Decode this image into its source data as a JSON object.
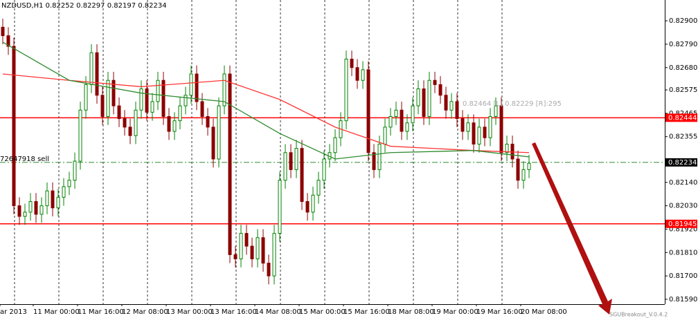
{
  "chart_data": {
    "type": "candlestick",
    "title": "NZDUSD,H1  0.82252 0.82297 0.82197 0.82234",
    "order_label": "72647918 sell",
    "box_label": "0.82464 [L] 0.82229 [R]:295",
    "watermark": "SGUBreakout_V.0.4.2",
    "up_color": "#008000",
    "down_color": "#8b0000",
    "open": [
      0.8287,
      0.8283,
      0.8278,
      0.8203,
      0.8198,
      0.82,
      0.8205,
      0.8199,
      0.8203,
      0.821,
      0.8202,
      0.8207,
      0.8212,
      0.8215,
      0.8224,
      0.8248,
      0.826,
      0.8275,
      0.8255,
      0.8245,
      0.8262,
      0.825,
      0.8244,
      0.824,
      0.8236,
      0.8248,
      0.8258,
      0.8247,
      0.8252,
      0.8262,
      0.8245,
      0.8238,
      0.8243,
      0.825,
      0.8255,
      0.8265,
      0.8252,
      0.8245,
      0.824,
      0.8225,
      0.825,
      0.8265,
      0.818,
      0.8178,
      0.819,
      0.8184,
      0.8178,
      0.8188,
      0.8176,
      0.817,
      0.819,
      0.8215,
      0.8228,
      0.822,
      0.823,
      0.8205,
      0.82,
      0.8208,
      0.8215,
      0.8225,
      0.8228,
      0.8235,
      0.8243,
      0.8272,
      0.8268,
      0.8262,
      0.8267,
      0.8228,
      0.822,
      0.8232,
      0.824,
      0.8245,
      0.8248,
      0.8238,
      0.8242,
      0.825,
      0.8258,
      0.8245,
      0.8262,
      0.826,
      0.8255,
      0.8248,
      0.8252,
      0.8244,
      0.8238,
      0.8242,
      0.8232,
      0.824,
      0.8235,
      0.8245,
      0.825,
      0.8228,
      0.8232,
      0.8225,
      0.8215,
      0.822
    ],
    "high": [
      0.8291,
      0.8287,
      0.8282,
      0.8207,
      0.8204,
      0.8209,
      0.8209,
      0.8207,
      0.8214,
      0.8214,
      0.8211,
      0.8216,
      0.8219,
      0.8228,
      0.8252,
      0.8264,
      0.8279,
      0.8279,
      0.8259,
      0.8266,
      0.8266,
      0.8254,
      0.8248,
      0.8244,
      0.8252,
      0.8262,
      0.8262,
      0.8256,
      0.8266,
      0.8266,
      0.8249,
      0.8247,
      0.8254,
      0.8259,
      0.8269,
      0.8269,
      0.8256,
      0.8249,
      0.8244,
      0.8254,
      0.8269,
      0.8269,
      0.8184,
      0.8194,
      0.8194,
      0.8188,
      0.8192,
      0.8192,
      0.818,
      0.8194,
      0.8219,
      0.8232,
      0.8232,
      0.8234,
      0.8234,
      0.8209,
      0.8212,
      0.8219,
      0.8229,
      0.8232,
      0.8239,
      0.8247,
      0.8276,
      0.8276,
      0.8272,
      0.8271,
      0.8271,
      0.8232,
      0.8236,
      0.8244,
      0.8249,
      0.8252,
      0.8252,
      0.8246,
      0.8254,
      0.8262,
      0.8262,
      0.8266,
      0.8266,
      0.8264,
      0.8259,
      0.8256,
      0.8256,
      0.8248,
      0.8246,
      0.8246,
      0.8244,
      0.8244,
      0.8249,
      0.8254,
      0.8254,
      0.8236,
      0.8236,
      0.8229,
      0.8224,
      0.8227
    ],
    "low": [
      0.8279,
      0.8274,
      0.8199,
      0.8194,
      0.8194,
      0.8196,
      0.8195,
      0.8195,
      0.8199,
      0.8198,
      0.8198,
      0.8203,
      0.8208,
      0.8211,
      0.822,
      0.8244,
      0.8256,
      0.8251,
      0.8241,
      0.8241,
      0.8246,
      0.824,
      0.8236,
      0.8232,
      0.8232,
      0.8244,
      0.8243,
      0.8243,
      0.8248,
      0.8241,
      0.8234,
      0.8234,
      0.8239,
      0.8246,
      0.8251,
      0.8248,
      0.8241,
      0.8236,
      0.8221,
      0.8221,
      0.8246,
      0.8176,
      0.8174,
      0.8174,
      0.818,
      0.8174,
      0.8174,
      0.8172,
      0.8166,
      0.8166,
      0.8186,
      0.8211,
      0.8216,
      0.8216,
      0.8201,
      0.8196,
      0.8196,
      0.8204,
      0.8211,
      0.8221,
      0.8224,
      0.8231,
      0.8239,
      0.8264,
      0.8258,
      0.8258,
      0.8224,
      0.8216,
      0.8216,
      0.8228,
      0.8236,
      0.8241,
      0.8234,
      0.8234,
      0.8238,
      0.8246,
      0.8241,
      0.8241,
      0.8256,
      0.8251,
      0.8244,
      0.8244,
      0.824,
      0.8234,
      0.8234,
      0.8228,
      0.8228,
      0.8231,
      0.8231,
      0.8241,
      0.8224,
      0.8224,
      0.8221,
      0.8211,
      0.8211,
      0.8216
    ],
    "close": [
      0.8283,
      0.8278,
      0.8203,
      0.8198,
      0.82,
      0.8205,
      0.8199,
      0.8203,
      0.821,
      0.8202,
      0.8207,
      0.8212,
      0.8215,
      0.8224,
      0.8248,
      0.826,
      0.8275,
      0.8255,
      0.8245,
      0.8262,
      0.825,
      0.8244,
      0.824,
      0.8236,
      0.8248,
      0.8258,
      0.8247,
      0.8252,
      0.8262,
      0.8245,
      0.8238,
      0.8243,
      0.825,
      0.8255,
      0.8265,
      0.8252,
      0.8245,
      0.824,
      0.8225,
      0.825,
      0.8265,
      0.818,
      0.8178,
      0.819,
      0.8184,
      0.8178,
      0.8188,
      0.8176,
      0.817,
      0.819,
      0.8215,
      0.8228,
      0.822,
      0.823,
      0.8205,
      0.82,
      0.8208,
      0.8215,
      0.8225,
      0.8228,
      0.8235,
      0.8243,
      0.8272,
      0.8268,
      0.8262,
      0.8267,
      0.8228,
      0.822,
      0.8232,
      0.824,
      0.8245,
      0.8248,
      0.8238,
      0.8242,
      0.825,
      0.8258,
      0.8245,
      0.8262,
      0.826,
      0.8255,
      0.8248,
      0.8252,
      0.8244,
      0.8238,
      0.8242,
      0.8232,
      0.824,
      0.8235,
      0.8245,
      0.825,
      0.8228,
      0.8232,
      0.8225,
      0.8215,
      0.822,
      0.8223
    ],
    "lines": [
      {
        "color": "#ff3333",
        "x": [
          0,
          12,
          25,
          40,
          50,
          60,
          70,
          85,
          95
        ],
        "values": [
          0.8265,
          0.8262,
          0.8259,
          0.8262,
          0.8253,
          0.824,
          0.8231,
          0.8229,
          0.8228
        ]
      },
      {
        "color": "#2e8b2e",
        "x": [
          0,
          12,
          25,
          40,
          50,
          60,
          70,
          85,
          95
        ],
        "values": [
          0.828,
          0.8262,
          0.8256,
          0.8252,
          0.8237,
          0.8225,
          0.8228,
          0.8229,
          0.8226
        ]
      }
    ],
    "levels": [
      {
        "value": 0.82444,
        "color": "#ff0000",
        "style": "solid"
      },
      {
        "value": 0.82234,
        "color": "#2e8b2e",
        "style": "dashdot"
      },
      {
        "value": 0.81945,
        "color": "#ff0000",
        "style": "solid"
      }
    ],
    "xlim": [
      -0.5,
      119.5
    ],
    "xticks": [
      {
        "value": -0.5,
        "label": "ar 2013"
      },
      {
        "value": 5.5,
        "label": "11 Mar 00:00"
      },
      {
        "value": 13.5,
        "label": "11 Mar 16:00"
      },
      {
        "value": 21.5,
        "label": "12 Mar 08:00"
      },
      {
        "value": 29.5,
        "label": "13 Mar 00:00"
      },
      {
        "value": 37.5,
        "label": "13 Mar 16:00"
      },
      {
        "value": 45.5,
        "label": "14 Mar 08:00"
      },
      {
        "value": 53.5,
        "label": "15 Mar 00:00"
      },
      {
        "value": 61.5,
        "label": "15 Mar 16:00"
      },
      {
        "value": 69.5,
        "label": "18 Mar 08:00"
      },
      {
        "value": 77.5,
        "label": "19 Mar 00:00"
      },
      {
        "value": 85.5,
        "label": "19 Mar 16:00"
      },
      {
        "value": 93.5,
        "label": "20 Mar 08:00"
      }
    ],
    "ylim": [
      0.81567,
      0.82998
    ],
    "yticks": [
      {
        "value": 0.829,
        "label": "0.82900"
      },
      {
        "value": 0.8279,
        "label": "0.82790"
      },
      {
        "value": 0.8268,
        "label": "0.82680"
      },
      {
        "value": 0.82575,
        "label": "0.82575"
      },
      {
        "value": 0.82465,
        "label": "0.82465"
      },
      {
        "value": 0.82355,
        "label": "0.82355"
      },
      {
        "value": 0.8214,
        "label": "0.82140"
      },
      {
        "value": 0.8203,
        "label": "0.82030"
      },
      {
        "value": 0.8192,
        "label": "0.81920"
      },
      {
        "value": 0.8181,
        "label": "0.81810"
      },
      {
        "value": 0.817,
        "label": "0.81700"
      },
      {
        "value": 0.8159,
        "label": "0.81590"
      }
    ],
    "grid": true
  }
}
